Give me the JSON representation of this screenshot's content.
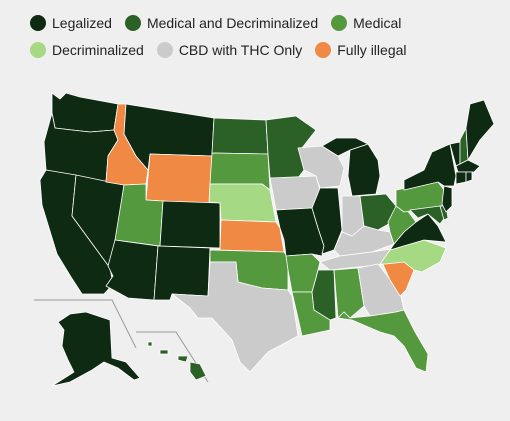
{
  "legend": [
    {
      "label": "Legalized",
      "color": "#0e2a12"
    },
    {
      "label": "Medical and Decriminalized",
      "color": "#2b6127"
    },
    {
      "label": "Medical",
      "color": "#55993f"
    },
    {
      "label": "Decriminalized",
      "color": "#a6d984"
    },
    {
      "label": "CBD with THC Only",
      "color": "#cbcbcb"
    },
    {
      "label": "Fully illegal",
      "color": "#ef8943"
    }
  ],
  "status_colors": {
    "legalized": "#0e2a12",
    "medical_decriminalized": "#2b6127",
    "medical": "#55993f",
    "decriminalized": "#a6d984",
    "cbd_thc_only": "#cbcbcb",
    "fully_illegal": "#ef8943"
  },
  "states": {
    "WA": "legalized",
    "OR": "legalized",
    "CA": "legalized",
    "NV": "legalized",
    "ID": "fully_illegal",
    "MT": "legalized",
    "WY": "fully_illegal",
    "UT": "medical",
    "AZ": "legalized",
    "CO": "legalized",
    "NM": "legalized",
    "ND": "medical_decriminalized",
    "SD": "medical",
    "NE": "decriminalized",
    "KS": "fully_illegal",
    "OK": "medical",
    "TX": "cbd_thc_only",
    "MN": "medical_decriminalized",
    "IA": "cbd_thc_only",
    "MO": "legalized",
    "AR": "medical",
    "LA": "medical",
    "WI": "cbd_thc_only",
    "IL": "legalized",
    "MI": "legalized",
    "IN": "cbd_thc_only",
    "OH": "medical_decriminalized",
    "KY": "cbd_thc_only",
    "TN": "cbd_thc_only",
    "MS": "medical_decriminalized",
    "AL": "medical",
    "GA": "cbd_thc_only",
    "FL": "medical",
    "SC": "fully_illegal",
    "NC": "decriminalized",
    "VA": "legalized",
    "WV": "medical",
    "PA": "medical",
    "MD": "medical_decriminalized",
    "DE": "medical_decriminalized",
    "NJ": "legalized",
    "NY": "legalized",
    "CT": "legalized",
    "RI": "legalized",
    "MA": "legalized",
    "VT": "legalized",
    "NH": "medical_decriminalized",
    "ME": "legalized",
    "AK": "legalized",
    "HI": "medical_decriminalized"
  }
}
